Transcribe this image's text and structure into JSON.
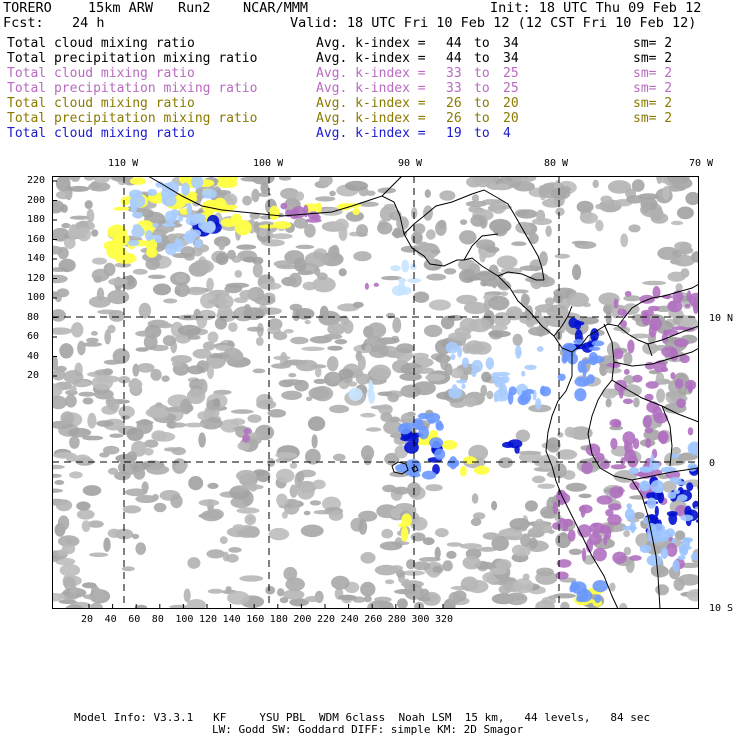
{
  "header": {
    "model": "TORERO",
    "resolution": "15km ARW",
    "run": "Run2",
    "org": "NCAR/MMM",
    "init": "Init: 18 UTC Thu 09 Feb 12",
    "fcst_label": "Fcst:",
    "fcst_value": "24 h",
    "valid": "Valid: 18 UTC Fri 10 Feb 12 (12 CST Fri 10 Feb 12)"
  },
  "legend": [
    {
      "field": "Total cloud mixing ratio",
      "index": "Avg. k-index =",
      "from": "44",
      "to": "to",
      "upto": "34",
      "sm": "sm= 2",
      "color": "#000000"
    },
    {
      "field": "Total precipitation mixing ratio",
      "index": "Avg. k-index =",
      "from": "44",
      "to": "to",
      "upto": "34",
      "sm": "sm= 2",
      "color": "#000000"
    },
    {
      "field": "Total cloud mixing ratio",
      "index": "Avg. k-index =",
      "from": "33",
      "to": "to",
      "upto": "25",
      "sm": "sm= 2",
      "color": "#b86bc0"
    },
    {
      "field": "Total precipitation mixing ratio",
      "index": "Avg. k-index =",
      "from": "33",
      "to": "to",
      "upto": "25",
      "sm": "sm= 2",
      "color": "#b86bc0"
    },
    {
      "field": "Total cloud mixing ratio",
      "index": "Avg. k-index =",
      "from": "26",
      "to": "to",
      "upto": "20",
      "sm": "sm= 2",
      "color": "#8a7a00"
    },
    {
      "field": "Total precipitation mixing ratio",
      "index": "Avg. k-index =",
      "from": "26",
      "to": "to",
      "upto": "20",
      "sm": "sm= 2",
      "color": "#8a7a00"
    },
    {
      "field": "Total cloud mixing ratio",
      "index": "Avg. k-index =",
      "from": "19",
      "to": "to",
      "upto": "4",
      "sm": "",
      "color": "#1a1ad0"
    }
  ],
  "axes": {
    "top_lon": [
      "110 W",
      "100 W",
      "90 W",
      "80 W",
      "70 W"
    ],
    "right_lat": [
      "10 N",
      "0",
      "10 S"
    ],
    "y_ticks": [
      "220",
      "200",
      "180",
      "160",
      "140",
      "120",
      "100",
      "80",
      "60",
      "40",
      "20"
    ],
    "x_ticks": [
      "20",
      "40",
      "60",
      "80",
      "100",
      "120",
      "140",
      "160",
      "180",
      "200",
      "220",
      "240",
      "260",
      "280",
      "300",
      "320"
    ]
  },
  "footer": {
    "line1": "Model Info: V3.3.1   KF     YSU PBL  WDM 6class  Noah LSM  15 km,   44 levels,   84 sec",
    "line2": "LW: Godd SW: Goddard DIFF: simple KM: 2D Smagor"
  },
  "colors": {
    "land_cloud_gray": "#a8a8a8",
    "purple": "#b070c0",
    "yellow": "#ffff40",
    "light_blue": "#c8e4ff",
    "mid_blue": "#6090ff",
    "deep_blue": "#0010d0",
    "coast": "#000000"
  }
}
